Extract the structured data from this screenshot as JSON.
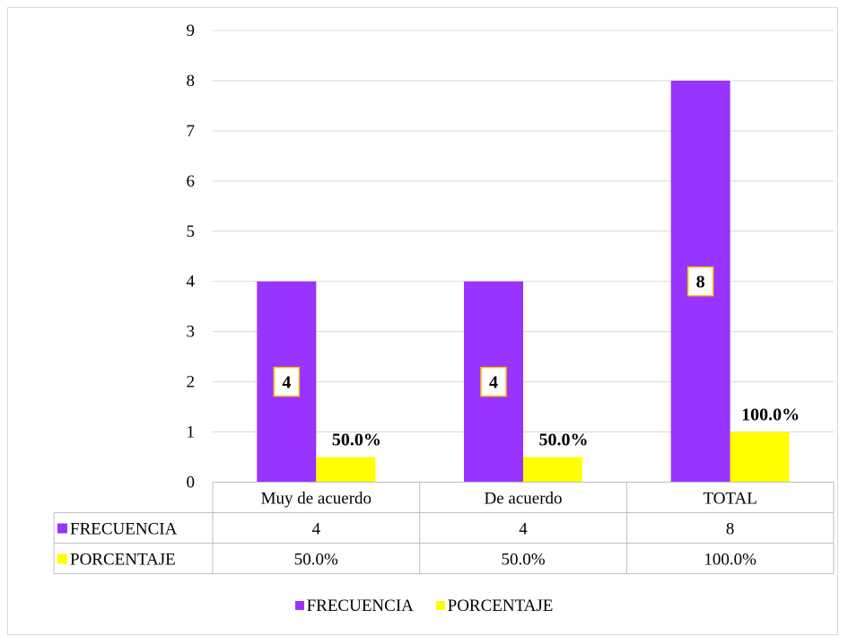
{
  "chart_data": {
    "type": "bar",
    "categories": [
      "Muy de acuerdo",
      "De acuerdo",
      "TOTAL"
    ],
    "series": [
      {
        "name": "FRECUENCIA",
        "values": [
          4,
          4,
          8
        ],
        "color": "#9933ff",
        "data_labels": [
          "4",
          "4",
          "8"
        ],
        "table_values": [
          "4",
          "4",
          "8"
        ]
      },
      {
        "name": "PORCENTAJE",
        "values": [
          0.5,
          0.5,
          1.0
        ],
        "color": "#ffff00",
        "data_labels": [
          "50.0%",
          "50.0%",
          "100.0%"
        ],
        "table_values": [
          "50.0%",
          "50.0%",
          "100.0%"
        ]
      }
    ],
    "ylim": [
      0,
      9
    ],
    "yticks": [
      "0",
      "1",
      "2",
      "3",
      "4",
      "5",
      "6",
      "7",
      "8",
      "9"
    ],
    "grid": true,
    "legend_placement": "bottom",
    "data_table": true
  }
}
